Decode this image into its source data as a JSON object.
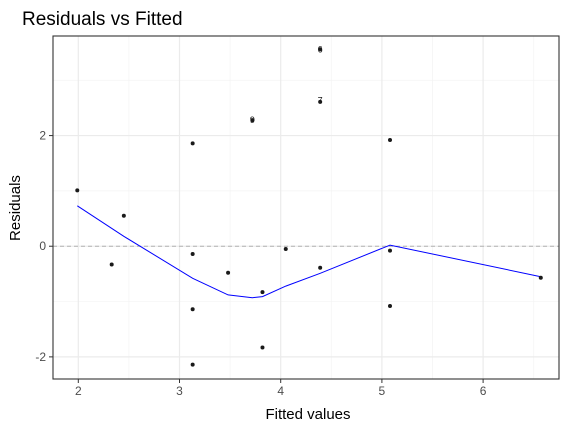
{
  "chart_data": {
    "type": "scatter",
    "title": "Residuals vs Fitted",
    "xlabel": "Fitted values",
    "ylabel": "Residuals",
    "xlim": [
      1.75,
      6.75
    ],
    "ylim": [
      -2.4,
      3.8
    ],
    "x_ticks": [
      2,
      3,
      4,
      5,
      6
    ],
    "x_tick_labels": [
      "2",
      "3",
      "4",
      "5",
      "6"
    ],
    "y_ticks": [
      -2,
      0,
      2
    ],
    "y_tick_labels": [
      "-2",
      "0",
      "2"
    ],
    "grid": true,
    "reference_line_y": 0,
    "points": [
      {
        "x": 1.99,
        "y": 1.01
      },
      {
        "x": 2.33,
        "y": -0.33
      },
      {
        "x": 2.45,
        "y": 0.55
      },
      {
        "x": 3.13,
        "y": 1.86
      },
      {
        "x": 3.13,
        "y": -0.14
      },
      {
        "x": 3.13,
        "y": -1.14
      },
      {
        "x": 3.13,
        "y": -2.14
      },
      {
        "x": 3.48,
        "y": -0.48
      },
      {
        "x": 3.72,
        "y": 2.28
      },
      {
        "x": 3.82,
        "y": -0.83
      },
      {
        "x": 3.82,
        "y": -1.83
      },
      {
        "x": 4.05,
        "y": -0.05
      },
      {
        "x": 4.39,
        "y": -0.39
      },
      {
        "x": 4.39,
        "y": 2.61
      },
      {
        "x": 4.39,
        "y": 3.56
      },
      {
        "x": 5.08,
        "y": 1.92
      },
      {
        "x": 5.08,
        "y": -0.08
      },
      {
        "x": 5.08,
        "y": -1.08
      },
      {
        "x": 6.57,
        "y": -0.57
      }
    ],
    "point_labels": [
      {
        "x": 3.72,
        "y": 2.28,
        "text": "9"
      },
      {
        "x": 4.39,
        "y": 2.63,
        "text": "7"
      },
      {
        "x": 4.39,
        "y": 3.56,
        "text": "6"
      }
    ],
    "smooth_line": {
      "x": [
        1.99,
        2.45,
        3.13,
        3.48,
        3.72,
        3.82,
        4.05,
        4.39,
        5.08,
        6.57
      ],
      "y": [
        0.73,
        0.18,
        -0.58,
        -0.88,
        -0.93,
        -0.91,
        -0.72,
        -0.49,
        0.02,
        -0.55
      ]
    },
    "colors": {
      "points": "#1a1a1a",
      "smooth_line": "#0000ff",
      "reference_line": "#b3b3b3",
      "grid_major": "#ebebeb",
      "grid_minor": "#f3f3f3",
      "panel_border": "#333333"
    }
  }
}
